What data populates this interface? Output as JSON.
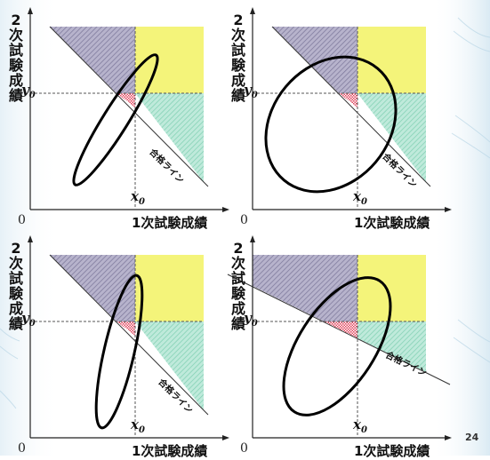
{
  "slide": {
    "page_number": "24"
  },
  "labels": {
    "y_axis": "2次試験成績",
    "x_axis": "1次試験成績",
    "origin": "0",
    "y_threshold_base": "y",
    "y_threshold_sub": "0",
    "x_threshold_base": "x",
    "x_threshold_sub": "0",
    "pass_line": "合格ライン"
  },
  "colors": {
    "accepted_region": "#f5f57a",
    "pass_line_only_region": "#a8e2cc",
    "second_only_region": "#aaa6c4",
    "lost_region": "#e05a6e",
    "ellipse_stroke": "#000000",
    "background_accent": "#cfe3ee"
  },
  "panels": [
    {
      "ellipse": "narrow, tilted along rising diagonal",
      "pass_line": "steep"
    },
    {
      "ellipse": "wide, nearly circular",
      "pass_line": "steep"
    },
    {
      "ellipse": "narrow, steep",
      "pass_line": "steep"
    },
    {
      "ellipse": "medium, tilted",
      "pass_line": "shallow"
    }
  ]
}
